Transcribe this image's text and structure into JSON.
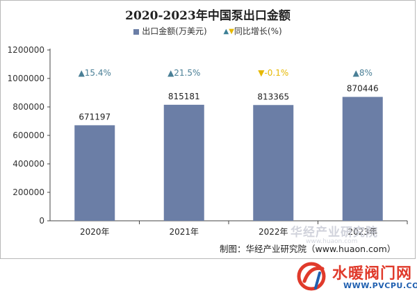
{
  "chart_data": {
    "type": "bar",
    "title": "2020-2023年中国泵出口金额",
    "categories": [
      "2020年",
      "2021年",
      "2022年",
      "2023年"
    ],
    "series": [
      {
        "name": "出口金额(万美元)",
        "values": [
          671197,
          815181,
          813365,
          870446
        ]
      }
    ],
    "growth": {
      "name": "同比增长(%)",
      "labels": [
        "▲15.4%",
        "▲21.5%",
        "▼-0.1%",
        "▲8%"
      ],
      "directions": [
        "up",
        "up",
        "down",
        "up"
      ]
    },
    "y_ticks": [
      "0",
      "200000",
      "400000",
      "600000",
      "800000",
      "1000000",
      "1200000"
    ],
    "ylim": [
      0,
      1200000
    ],
    "grid": false,
    "legend_position": "top-center"
  },
  "colors": {
    "bar": "#6b7ea6",
    "up": "#4a7f96",
    "down": "#e6b800",
    "legend_tri_up": "#3d7f95",
    "legend_tri_down": "#e6b800"
  },
  "legend": {
    "bar_label": "出口金额(万美元)",
    "tri_up": "▲",
    "tri_down": "▼",
    "growth_label": "同比增长(%)"
  },
  "source": "制图：华经产业研究院（www.huaon.com）",
  "watermark": {
    "cn": "华经产业研究院",
    "url": "www.huaon.com"
  },
  "logo": {
    "text": "水暖阀门网",
    "url": "WWW.PVCPU.COM"
  }
}
